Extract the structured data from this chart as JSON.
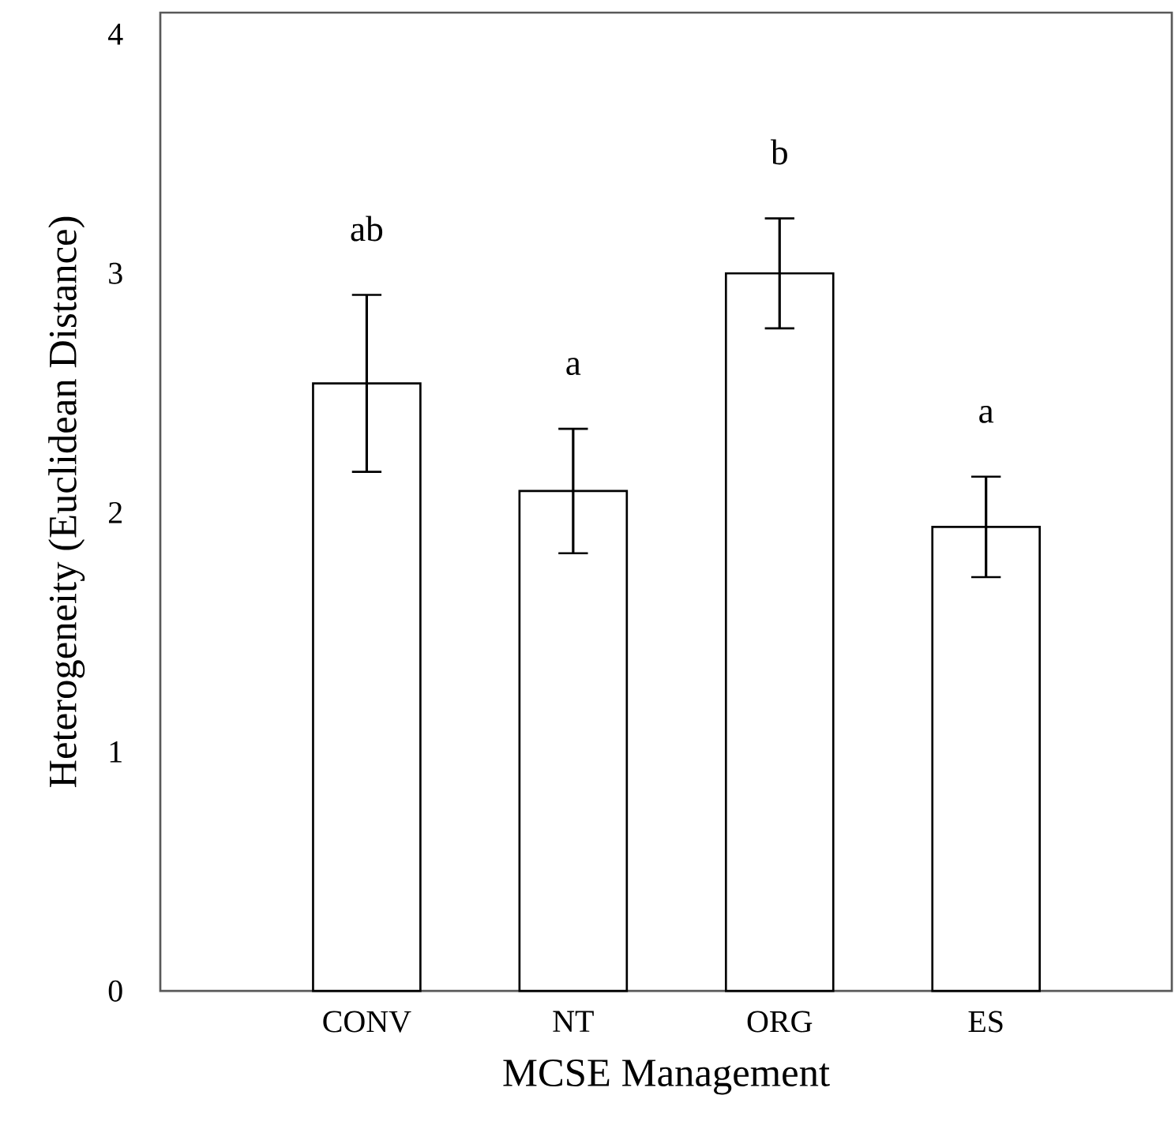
{
  "chart_data": {
    "type": "bar",
    "xlabel": "MCSE Management",
    "ylabel": "Heterogeneity (Euclidean Distance)",
    "categories": [
      "CONV",
      "NT",
      "ORG",
      "ES"
    ],
    "values": [
      2.54,
      2.09,
      3.0,
      1.94
    ],
    "errors": [
      0.37,
      0.26,
      0.23,
      0.21
    ],
    "color": "#ffffff",
    "ylim": [
      0,
      4.09
    ],
    "yticks": [
      0,
      1,
      2,
      3,
      4
    ],
    "annotations": [
      "ab",
      "a",
      "b",
      "a"
    ]
  }
}
